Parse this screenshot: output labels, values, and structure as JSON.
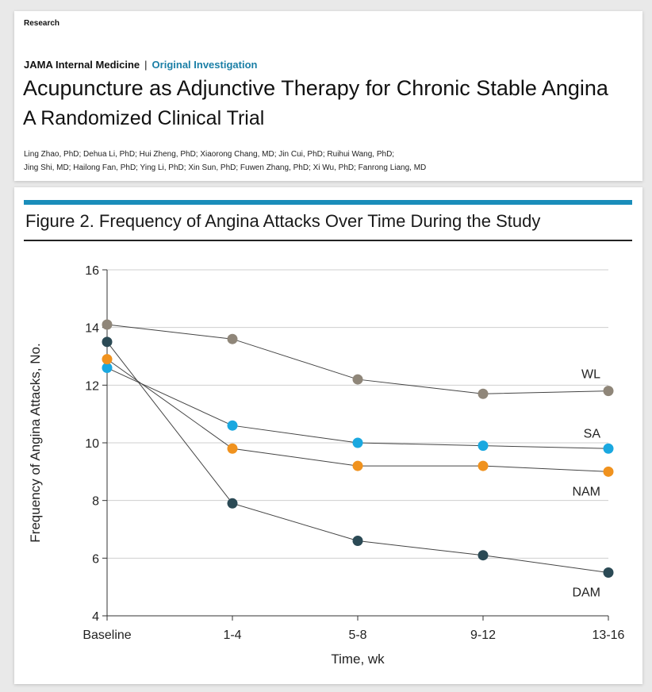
{
  "header": {
    "section": "Research",
    "journal": "JAMA Internal Medicine",
    "separator": "|",
    "article_type": "Original Investigation",
    "title": "Acupuncture as Adjunctive Therapy for Chronic Stable Angina",
    "subtitle": "A Randomized Clinical Trial",
    "authors_line1": "Ling Zhao, PhD; Dehua Li, PhD; Hui Zheng, PhD; Xiaorong Chang, MD; Jin Cui, PhD; Ruihui Wang, PhD;",
    "authors_line2": "Jing Shi, MD; Hailong Fan, PhD; Ying Li, PhD; Xin Sun, PhD; Fuwen Zhang, PhD; Xi Wu, PhD; Fanrong Liang, MD"
  },
  "figure": {
    "title": "Figure 2. Frequency of Angina Attacks Over Time During the Study"
  },
  "colors": {
    "accent_bar": "#1a8dba",
    "journal_type": "#1b7fa6",
    "WL": "#8f8679",
    "SA": "#1aa8e0",
    "NAM": "#f0921e",
    "DAM": "#2b4a55"
  },
  "chart_data": {
    "type": "line",
    "categories": [
      "Baseline",
      "1-4",
      "5-8",
      "9-12",
      "13-16"
    ],
    "xlabel": "Time, wk",
    "ylabel": "Frequency of Angina Attacks, No.",
    "ylim": [
      4,
      16
    ],
    "yticks": [
      4,
      6,
      8,
      10,
      12,
      14,
      16
    ],
    "grid": true,
    "legend": "inline labels at right end of lines",
    "series": [
      {
        "name": "WL",
        "color": "#8f8679",
        "values": [
          14.1,
          13.6,
          12.2,
          11.7,
          11.8
        ]
      },
      {
        "name": "SA",
        "color": "#1aa8e0",
        "values": [
          12.6,
          10.6,
          10.0,
          9.9,
          9.8
        ]
      },
      {
        "name": "NAM",
        "color": "#f0921e",
        "values": [
          12.9,
          9.8,
          9.2,
          9.2,
          9.0
        ]
      },
      {
        "name": "DAM",
        "color": "#2b4a55",
        "values": [
          13.5,
          7.9,
          6.6,
          6.1,
          5.5
        ]
      }
    ]
  }
}
